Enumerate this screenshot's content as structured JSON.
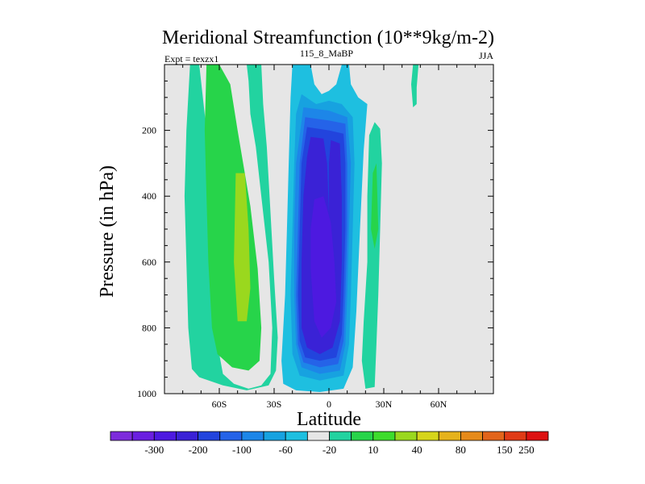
{
  "chart_data": {
    "type": "heatmap",
    "title": "Meridional Streamfunction (10**9kg/m-2)",
    "left_label": "Expt = texzx1",
    "center_label": "115_8_MaBP",
    "right_label": "JJA",
    "xlabel": "Latitude",
    "ylabel": "Pressure (in hPa)",
    "xlim": [
      -90,
      90
    ],
    "ylim": [
      1000,
      0
    ],
    "x_ticks": [
      {
        "value": -60,
        "label": "60S"
      },
      {
        "value": -30,
        "label": "30S"
      },
      {
        "value": 0,
        "label": "0"
      },
      {
        "value": 30,
        "label": "30N"
      },
      {
        "value": 60,
        "label": "60N"
      }
    ],
    "y_ticks": [
      {
        "value": 200,
        "label": "200"
      },
      {
        "value": 400,
        "label": "400"
      },
      {
        "value": 600,
        "label": "600"
      },
      {
        "value": 800,
        "label": "800"
      },
      {
        "value": 1000,
        "label": "1000"
      }
    ],
    "background_color": "#e6e6e6",
    "colorbar": {
      "colors": [
        "#7d2bdc",
        "#6a1fe0",
        "#4d19e0",
        "#3a22d6",
        "#2244dd",
        "#2563e8",
        "#1d86e8",
        "#17a2e0",
        "#1ebfe0",
        "#e6e6e6",
        "#22d3a0",
        "#27d44a",
        "#3ddc2c",
        "#9ad81e",
        "#d6d51a",
        "#e6b21c",
        "#e68a1a",
        "#e2641a",
        "#e03a16",
        "#dd1111"
      ],
      "tick_labels": [
        "-300",
        "-200",
        "-100",
        "-60",
        "-20",
        "10",
        "40",
        "80",
        "150",
        "250"
      ],
      "tick_after_box": [
        1,
        3,
        5,
        7,
        9,
        11,
        13,
        15,
        17
      ]
    },
    "regions": [
      {
        "name": "sh-positive-cell",
        "value_class": 11,
        "color": "#22d3a0",
        "outline": [
          [
            -76,
            0
          ],
          [
            -71,
            0
          ],
          [
            -69,
            100
          ],
          [
            -66,
            250
          ],
          [
            -64,
            450
          ],
          [
            -63,
            650
          ],
          [
            -61,
            850
          ],
          [
            -58,
            940
          ],
          [
            -52,
            970
          ],
          [
            -44,
            985
          ],
          [
            -37,
            975
          ],
          [
            -32,
            940
          ],
          [
            -31,
            800
          ],
          [
            -33,
            600
          ],
          [
            -37,
            400
          ],
          [
            -40,
            250
          ],
          [
            -43,
            150
          ],
          [
            -44,
            50
          ],
          [
            -45,
            0
          ],
          [
            -37,
            0
          ],
          [
            -36,
            120
          ],
          [
            -34,
            250
          ],
          [
            -32,
            450
          ],
          [
            -30,
            650
          ],
          [
            -28,
            830
          ],
          [
            -29,
            930
          ],
          [
            -33,
            975
          ],
          [
            -45,
            990
          ],
          [
            -58,
            975
          ],
          [
            -71,
            950
          ],
          [
            -75,
            925
          ],
          [
            -77,
            800
          ],
          [
            -78,
            600
          ],
          [
            -79,
            400
          ],
          [
            -78,
            200
          ]
        ]
      },
      {
        "name": "sh-positive-40",
        "value_class": 12,
        "color": "#27d44a",
        "outline": [
          [
            -67,
            0
          ],
          [
            -60,
            0
          ],
          [
            -54,
            60
          ],
          [
            -50,
            200
          ],
          [
            -43,
            430
          ],
          [
            -39,
            620
          ],
          [
            -37,
            800
          ],
          [
            -38,
            900
          ],
          [
            -44,
            930
          ],
          [
            -53,
            920
          ],
          [
            -61,
            880
          ],
          [
            -64,
            800
          ],
          [
            -66,
            600
          ],
          [
            -67,
            400
          ],
          [
            -68,
            200
          ]
        ]
      },
      {
        "name": "sh-positive-80",
        "value_class": 13,
        "color": "#9ad81e",
        "outline": [
          [
            -51,
            330
          ],
          [
            -46,
            330
          ],
          [
            -44,
            500
          ],
          [
            -43,
            680
          ],
          [
            -45,
            780
          ],
          [
            -50,
            780
          ],
          [
            -52,
            600
          ]
        ]
      },
      {
        "name": "nh-upper-blob",
        "value_class": 11,
        "color": "#22d3a0",
        "outline": [
          [
            46,
            0
          ],
          [
            49,
            0
          ],
          [
            48,
            70
          ],
          [
            48,
            120
          ],
          [
            46,
            130
          ],
          [
            45,
            60
          ]
        ]
      },
      {
        "name": "nh-positive-cell",
        "value_class": 11,
        "color": "#22d3a0",
        "outline": [
          [
            22,
            215
          ],
          [
            25,
            175
          ],
          [
            28,
            195
          ],
          [
            29,
            300
          ],
          [
            28,
            500
          ],
          [
            27,
            700
          ],
          [
            26,
            850
          ],
          [
            25,
            980
          ],
          [
            20,
            985
          ],
          [
            18,
            900
          ],
          [
            19,
            780
          ],
          [
            21,
            600
          ],
          [
            21,
            400
          ]
        ]
      },
      {
        "name": "nh-positive-40",
        "value_class": 12,
        "color": "#27d44a",
        "outline": [
          [
            24,
            330
          ],
          [
            26,
            300
          ],
          [
            27,
            500
          ],
          [
            25,
            560
          ],
          [
            23,
            500
          ]
        ]
      },
      {
        "name": "negative-cell",
        "value_class": 9,
        "color": "#1ebfe0",
        "outline": [
          [
            -20,
            0
          ],
          [
            -10,
            0
          ],
          [
            -8,
            60
          ],
          [
            -4,
            90
          ],
          [
            0,
            80
          ],
          [
            4,
            60
          ],
          [
            7,
            0
          ],
          [
            11,
            0
          ],
          [
            12,
            60
          ],
          [
            16,
            100
          ],
          [
            21,
            120
          ],
          [
            19,
            260
          ],
          [
            17,
            500
          ],
          [
            15,
            750
          ],
          [
            13,
            920
          ],
          [
            8,
            985
          ],
          [
            -5,
            995
          ],
          [
            -18,
            990
          ],
          [
            -25,
            970
          ],
          [
            -26,
            900
          ],
          [
            -24,
            700
          ],
          [
            -23,
            500
          ],
          [
            -22,
            300
          ],
          [
            -21,
            100
          ]
        ]
      },
      {
        "name": "negative-20",
        "value_class": 8,
        "color": "#17a2e0",
        "outline": [
          [
            -15,
            90
          ],
          [
            -7,
            120
          ],
          [
            0,
            110
          ],
          [
            7,
            120
          ],
          [
            13,
            160
          ],
          [
            14,
            300
          ],
          [
            13,
            500
          ],
          [
            12,
            700
          ],
          [
            11,
            850
          ],
          [
            8,
            945
          ],
          [
            -5,
            960
          ],
          [
            -16,
            945
          ],
          [
            -20,
            880
          ],
          [
            -21,
            700
          ],
          [
            -20,
            500
          ],
          [
            -19,
            300
          ],
          [
            -18,
            150
          ]
        ]
      },
      {
        "name": "negative-40",
        "value_class": 7,
        "color": "#1d86e8",
        "outline": [
          [
            -14,
            130
          ],
          [
            0,
            140
          ],
          [
            10,
            160
          ],
          [
            12,
            300
          ],
          [
            11,
            500
          ],
          [
            10,
            700
          ],
          [
            9,
            850
          ],
          [
            6,
            930
          ],
          [
            -5,
            940
          ],
          [
            -15,
            920
          ],
          [
            -18,
            850
          ],
          [
            -19,
            700
          ],
          [
            -19,
            500
          ],
          [
            -18,
            300
          ]
        ]
      },
      {
        "name": "negative-60",
        "value_class": 6,
        "color": "#2563e8",
        "outline": [
          [
            -13,
            160
          ],
          [
            0,
            170
          ],
          [
            9,
            180
          ],
          [
            10,
            300
          ],
          [
            10,
            500
          ],
          [
            9,
            700
          ],
          [
            8,
            840
          ],
          [
            5,
            910
          ],
          [
            -5,
            920
          ],
          [
            -14,
            905
          ],
          [
            -17,
            850
          ],
          [
            -18,
            700
          ],
          [
            -17,
            500
          ],
          [
            -16,
            300
          ]
        ]
      },
      {
        "name": "negative-100",
        "value_class": 5,
        "color": "#2244dd",
        "outline": [
          [
            -12,
            190
          ],
          [
            0,
            200
          ],
          [
            8,
            210
          ],
          [
            9,
            300
          ],
          [
            9,
            500
          ],
          [
            8,
            700
          ],
          [
            7,
            820
          ],
          [
            4,
            890
          ],
          [
            -5,
            900
          ],
          [
            -13,
            890
          ],
          [
            -16,
            840
          ],
          [
            -17,
            700
          ],
          [
            -16,
            500
          ],
          [
            -15,
            300
          ]
        ]
      },
      {
        "name": "negative-150",
        "value_class": 4,
        "color": "#3a22d6",
        "outline": [
          [
            -10,
            220
          ],
          [
            -3,
            225
          ],
          [
            -1,
            300
          ],
          [
            0,
            450
          ],
          [
            0,
            300
          ],
          [
            1,
            230
          ],
          [
            6,
            240
          ],
          [
            7,
            400
          ],
          [
            7,
            600
          ],
          [
            6,
            780
          ],
          [
            2,
            860
          ],
          [
            -5,
            880
          ],
          [
            -12,
            860
          ],
          [
            -15,
            800
          ],
          [
            -15,
            600
          ],
          [
            -14,
            400
          ],
          [
            -12,
            280
          ]
        ]
      },
      {
        "name": "negative-200",
        "value_class": 3,
        "color": "#4d19e0",
        "outline": [
          [
            -8,
            410
          ],
          [
            -3,
            400
          ],
          [
            1,
            480
          ],
          [
            3,
            600
          ],
          [
            4,
            720
          ],
          [
            1,
            800
          ],
          [
            -4,
            830
          ],
          [
            -8,
            780
          ],
          [
            -10,
            620
          ],
          [
            -10,
            500
          ]
        ]
      }
    ]
  }
}
